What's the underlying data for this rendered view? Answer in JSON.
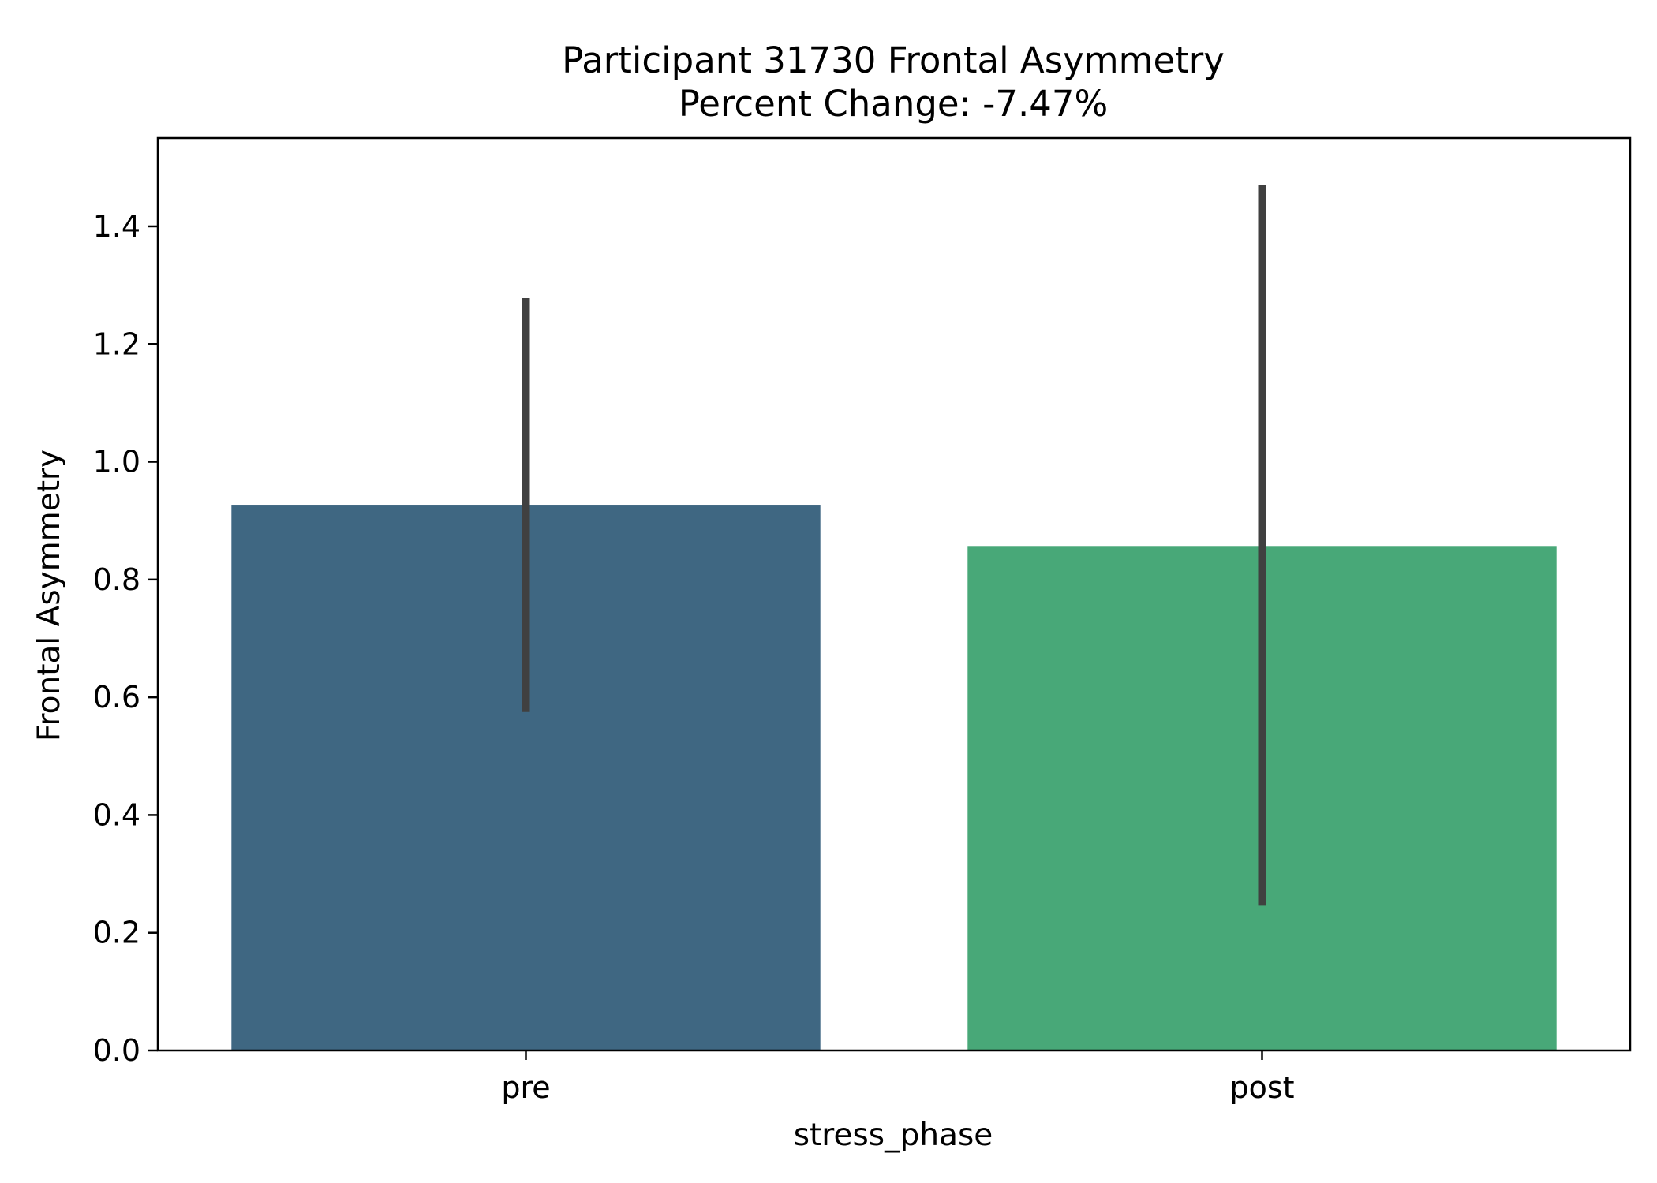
{
  "chart_data": {
    "type": "bar",
    "title": "Participant 31730 Frontal Asymmetry",
    "subtitle": "Percent Change: -7.47%",
    "xlabel": "stress_phase",
    "ylabel": "Frontal Asymmetry",
    "categories": [
      "pre",
      "post"
    ],
    "values": [
      0.927,
      0.857
    ],
    "error_bars": [
      {
        "low": 0.575,
        "high": 1.278
      },
      {
        "low": 0.246,
        "high": 1.47
      }
    ],
    "colors": [
      "#3f6782",
      "#48a878"
    ],
    "error_bar_color": "#404040",
    "ylim": [
      0,
      1.55
    ],
    "yticks": [
      0.0,
      0.2,
      0.4,
      0.6,
      0.8,
      1.0,
      1.2,
      1.4
    ],
    "ytick_labels": [
      "0.0",
      "0.2",
      "0.4",
      "0.6",
      "0.8",
      "1.0",
      "1.2",
      "1.4"
    ],
    "grid": false,
    "legend": "none"
  }
}
